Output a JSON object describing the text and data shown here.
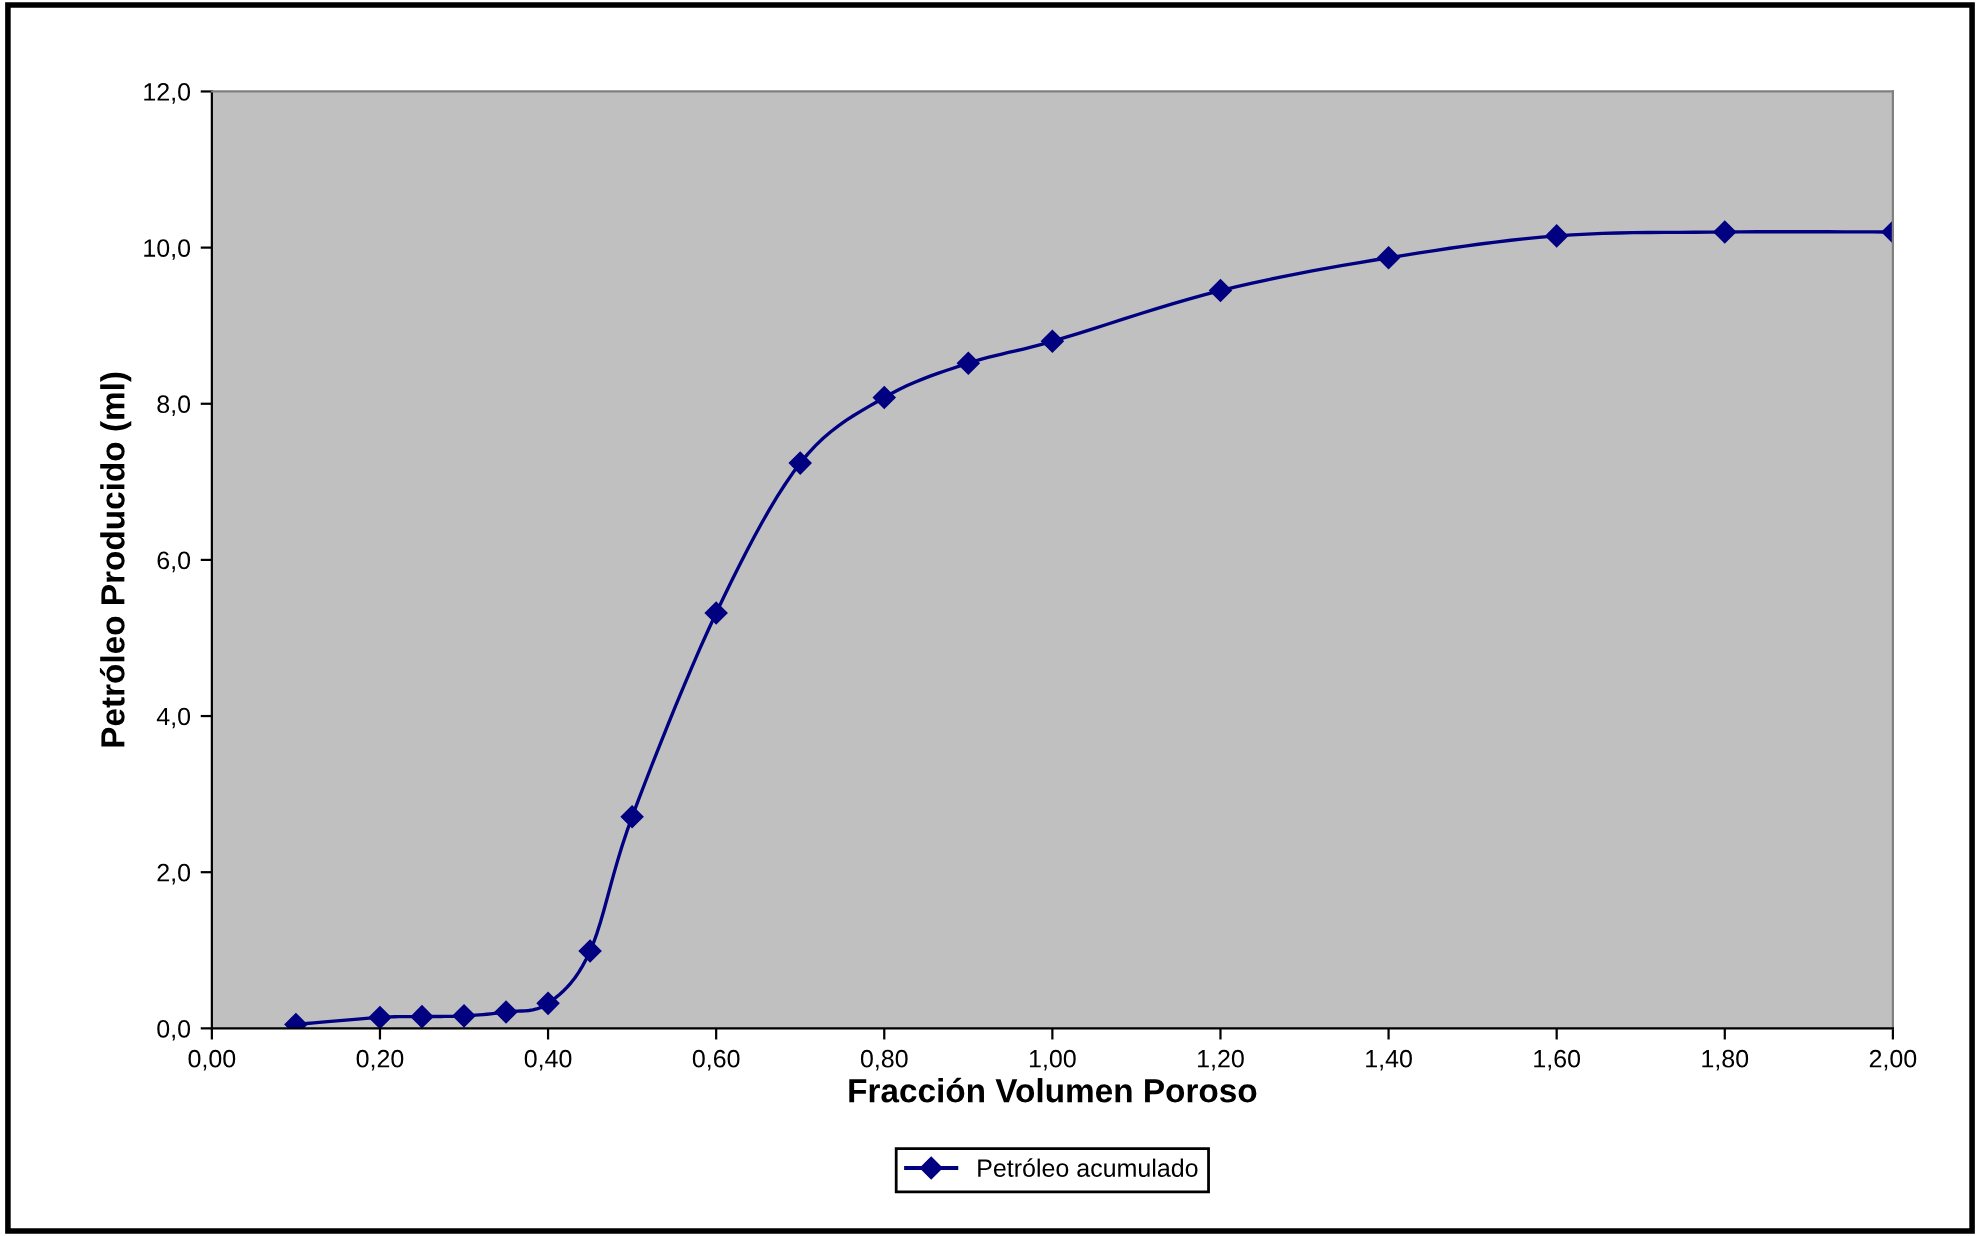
{
  "chart_data": {
    "type": "line",
    "xlabel": "Fracción Volumen Poroso",
    "ylabel": "Petróleo Producido (ml)",
    "xlim": [
      0,
      2
    ],
    "ylim": [
      0,
      12
    ],
    "xticks": [
      {
        "value": 0,
        "label": "0,00"
      },
      {
        "value": 0.2,
        "label": "0,20"
      },
      {
        "value": 0.4,
        "label": "0,40"
      },
      {
        "value": 0.6,
        "label": "0,60"
      },
      {
        "value": 0.8,
        "label": "0,80"
      },
      {
        "value": 1.0,
        "label": "1,00"
      },
      {
        "value": 1.2,
        "label": "1,20"
      },
      {
        "value": 1.4,
        "label": "1,40"
      },
      {
        "value": 1.6,
        "label": "1,60"
      },
      {
        "value": 1.8,
        "label": "1,80"
      },
      {
        "value": 2.0,
        "label": "2,00"
      }
    ],
    "yticks": [
      {
        "value": 0,
        "label": "0,0"
      },
      {
        "value": 2,
        "label": "2,0"
      },
      {
        "value": 4,
        "label": "4,0"
      },
      {
        "value": 6,
        "label": "6,0"
      },
      {
        "value": 8,
        "label": "8,0"
      },
      {
        "value": 10,
        "label": "10,0"
      },
      {
        "value": 12,
        "label": "12,0"
      }
    ],
    "x": [
      0.1,
      0.2,
      0.25,
      0.3,
      0.35,
      0.4,
      0.45,
      0.5,
      0.6,
      0.7,
      0.8,
      0.9,
      1.0,
      1.2,
      1.4,
      1.6,
      1.8,
      2.0
    ],
    "series": [
      {
        "name": "Petróleo acumulado",
        "color": "#000080",
        "values": [
          0.05,
          0.14,
          0.15,
          0.16,
          0.21,
          0.32,
          0.99,
          2.71,
          5.32,
          7.24,
          8.08,
          8.52,
          8.8,
          9.45,
          9.87,
          10.15,
          10.2,
          10.2
        ]
      }
    ],
    "marker": "diamond",
    "line_style": "solid",
    "grid": false,
    "legend": "bottom"
  }
}
